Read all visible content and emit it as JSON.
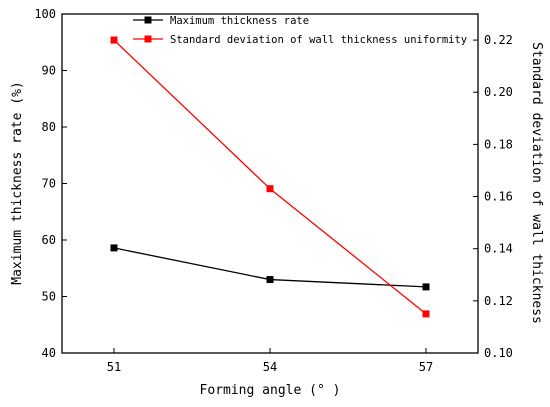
{
  "chart_data": {
    "type": "line",
    "x": [
      51,
      54,
      57
    ],
    "xlabel": "Forming angle (° )",
    "ylabel_left": "Maximum thickness rate (%)",
    "ylabel_right": "Standard deviation of wall thickness",
    "ylim_left": [
      40,
      100
    ],
    "yticks_left": [
      40,
      50,
      60,
      70,
      80,
      90,
      100
    ],
    "ylim_right": [
      0.1,
      0.23
    ],
    "yticks_right": [
      "0.10",
      "0.12",
      "0.14",
      "0.16",
      "0.18",
      "0.20",
      "0.22"
    ],
    "xticks": [
      "51",
      "54",
      "57"
    ],
    "grid": false,
    "legend_position": "top",
    "series": [
      {
        "name": "Maximum thickness rate",
        "axis": "left",
        "values": [
          58.6,
          53.0,
          51.7
        ],
        "color": "#000000",
        "marker": "square"
      },
      {
        "name": "Standard deviation of wall thickness uniformity",
        "axis": "right",
        "values": [
          0.22,
          0.163,
          0.115
        ],
        "color": "#ff0000",
        "marker": "square"
      }
    ]
  }
}
